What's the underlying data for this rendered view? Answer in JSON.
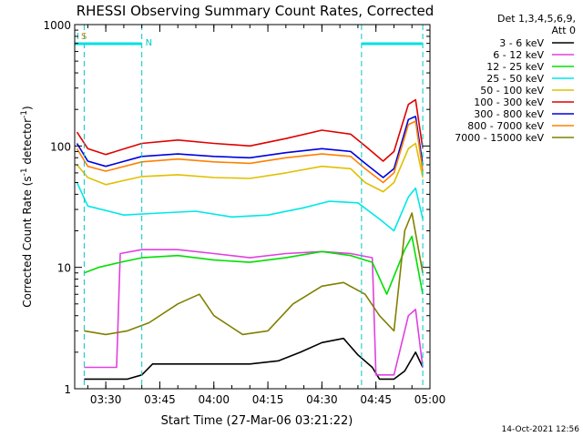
{
  "chart_data": {
    "type": "line",
    "title": "RHESSI Observing Summary Count Rates, Corrected",
    "ylabel_main": "Corrected Count Rate (s",
    "ylabel_sup1": "-1",
    "ylabel_mid": " detector",
    "ylabel_sup2": "-1",
    "ylabel_end": ")",
    "xlabel": "Start Time (27-Mar-06 03:21:22)",
    "yscale": "log",
    "ylim": [
      1,
      1000
    ],
    "xlim": [
      "03:21:22",
      "05:00"
    ],
    "x_ticks": [
      "03:30",
      "03:45",
      "04:00",
      "04:15",
      "04:30",
      "04:45",
      "05:00"
    ],
    "y_ticks": [
      "1",
      "10",
      "100",
      "1000"
    ],
    "legend_header": [
      "Det 1,3,4,5,6,9,",
      "Att 0"
    ],
    "timestamp": "14-Oct-2021 12:56",
    "flag_labels": [
      {
        "text": "I",
        "color": "#00c8c8"
      },
      {
        "text": "S",
        "color": "#e08000"
      },
      {
        "text": "N",
        "color": "#00c8c8"
      }
    ],
    "vlines": [
      "03:24",
      "03:40",
      "04:41",
      "04:58"
    ],
    "series": [
      {
        "name": "3 - 6 keV",
        "color": "#000000",
        "x": [
          "03:24",
          "03:36",
          "03:40",
          "03:43",
          "04:00",
          "04:10",
          "04:18",
          "04:24",
          "04:30",
          "04:36",
          "04:40",
          "04:44",
          "04:46",
          "04:50",
          "04:53",
          "04:56",
          "04:58"
        ],
        "y": [
          1.2,
          1.2,
          1.3,
          1.6,
          1.6,
          1.6,
          1.7,
          2.0,
          2.4,
          2.6,
          1.9,
          1.5,
          1.2,
          1.2,
          1.4,
          2.0,
          1.5
        ]
      },
      {
        "name": "6 - 12 keV",
        "color": "#e040e0",
        "x": [
          "03:24",
          "03:33",
          "03:34",
          "03:40",
          "03:50",
          "04:00",
          "04:10",
          "04:20",
          "04:30",
          "04:38",
          "04:44",
          "04:45",
          "04:50",
          "04:54",
          "04:56",
          "04:58"
        ],
        "y": [
          1.5,
          1.5,
          13.0,
          14.0,
          14.0,
          13.0,
          12.0,
          13.0,
          13.5,
          13.0,
          12.0,
          1.3,
          1.3,
          4.0,
          4.5,
          1.5
        ]
      },
      {
        "name": "12 - 25 keV",
        "color": "#00e000",
        "x": [
          "03:24",
          "03:28",
          "03:34",
          "03:40",
          "03:50",
          "04:00",
          "04:10",
          "04:20",
          "04:30",
          "04:38",
          "04:44",
          "04:48",
          "04:53",
          "04:55",
          "04:58"
        ],
        "y": [
          9.0,
          10.0,
          11.0,
          12.0,
          12.5,
          11.5,
          11.0,
          12.0,
          13.5,
          12.5,
          11.0,
          6.0,
          14.0,
          18.0,
          6.0
        ]
      },
      {
        "name": "25 - 50 keV",
        "color": "#00e8e8",
        "x": [
          "03:22",
          "03:25",
          "03:35",
          "03:45",
          "03:55",
          "04:05",
          "04:15",
          "04:25",
          "04:32",
          "04:40",
          "04:46",
          "04:50",
          "04:54",
          "04:56",
          "04:58"
        ],
        "y": [
          50,
          32,
          27,
          28,
          29,
          26,
          27,
          31,
          35,
          34,
          25,
          20,
          38,
          45,
          25
        ]
      },
      {
        "name": "50 - 100 keV",
        "color": "#e0c000",
        "x": [
          "03:22",
          "03:25",
          "03:30",
          "03:40",
          "03:50",
          "04:00",
          "04:10",
          "04:20",
          "04:30",
          "04:38",
          "04:42",
          "04:47",
          "04:50",
          "04:54",
          "04:56",
          "04:58"
        ],
        "y": [
          70,
          55,
          48,
          56,
          58,
          55,
          54,
          60,
          68,
          65,
          50,
          42,
          50,
          95,
          105,
          55
        ]
      },
      {
        "name": "100 - 300 keV",
        "color": "#e00000",
        "x": [
          "03:22",
          "03:25",
          "03:30",
          "03:40",
          "03:50",
          "04:00",
          "04:10",
          "04:20",
          "04:30",
          "04:38",
          "04:42",
          "04:47",
          "04:50",
          "04:54",
          "04:56",
          "04:58"
        ],
        "y": [
          130,
          95,
          85,
          105,
          112,
          105,
          100,
          115,
          135,
          125,
          100,
          75,
          90,
          220,
          240,
          95
        ]
      },
      {
        "name": "300 - 800 keV",
        "color": "#0000e0",
        "x": [
          "03:22",
          "03:25",
          "03:30",
          "03:40",
          "03:50",
          "04:00",
          "04:10",
          "04:20",
          "04:30",
          "04:38",
          "04:42",
          "04:47",
          "04:50",
          "04:54",
          "04:56",
          "04:58"
        ],
        "y": [
          105,
          75,
          68,
          82,
          86,
          82,
          80,
          88,
          95,
          90,
          72,
          55,
          65,
          165,
          175,
          70
        ]
      },
      {
        "name": "800 - 7000 keV",
        "color": "#ff8000",
        "x": [
          "03:22",
          "03:25",
          "03:30",
          "03:40",
          "03:50",
          "04:00",
          "04:10",
          "04:20",
          "04:30",
          "04:38",
          "04:42",
          "04:47",
          "04:50",
          "04:54",
          "04:56",
          "04:58"
        ],
        "y": [
          95,
          68,
          62,
          74,
          78,
          74,
          72,
          80,
          86,
          82,
          65,
          50,
          60,
          150,
          160,
          62
        ]
      },
      {
        "name": "7000 - 15000 keV",
        "color": "#808000",
        "x": [
          "03:24",
          "03:30",
          "03:36",
          "03:42",
          "03:50",
          "03:56",
          "04:00",
          "04:08",
          "04:15",
          "04:22",
          "04:30",
          "04:36",
          "04:42",
          "04:46",
          "04:50",
          "04:53",
          "04:55",
          "04:58"
        ],
        "y": [
          3.0,
          2.8,
          3.0,
          3.5,
          5.0,
          6.0,
          4.0,
          2.8,
          3.0,
          5.0,
          7.0,
          7.5,
          6.0,
          4.0,
          3.0,
          20.0,
          28.0,
          9.0
        ]
      }
    ]
  }
}
